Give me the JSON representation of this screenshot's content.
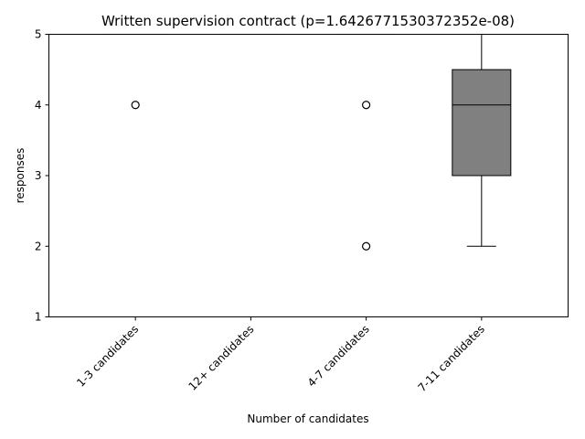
{
  "chart_data": {
    "type": "box",
    "title": "Written supervision contract (p=1.6426771530372352e-08)",
    "xlabel": "Number of candidates",
    "ylabel": "responses",
    "ylim": [
      1,
      5
    ],
    "yticks": [
      1,
      2,
      3,
      4,
      5
    ],
    "grid": false,
    "box_color": "#808080",
    "categories": [
      "1-3 candidates",
      "12+ candidates",
      "4-7 candidates",
      "7-11 candidates"
    ],
    "boxes": [
      {
        "category": "1-3 candidates",
        "whisker_low": 5,
        "q1": 5,
        "median": 5,
        "q3": 5,
        "whisker_high": 5,
        "outliers": [
          4
        ]
      },
      {
        "category": "12+ candidates",
        "whisker_low": 5,
        "q1": 5,
        "median": 5,
        "q3": 5,
        "whisker_high": 5,
        "outliers": []
      },
      {
        "category": "4-7 candidates",
        "whisker_low": 5,
        "q1": 5,
        "median": 5,
        "q3": 5,
        "whisker_high": 5,
        "outliers": [
          4,
          2
        ]
      },
      {
        "category": "7-11 candidates",
        "whisker_low": 2,
        "q1": 3,
        "median": 4,
        "q3": 4.5,
        "whisker_high": 5,
        "outliers": []
      }
    ]
  }
}
